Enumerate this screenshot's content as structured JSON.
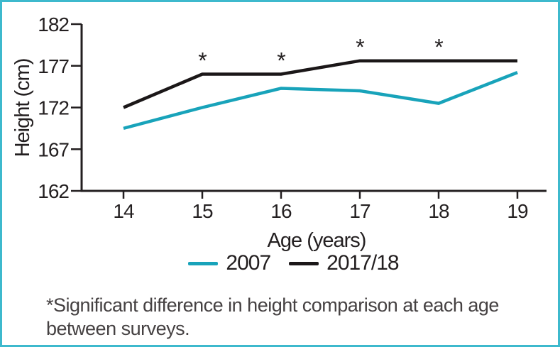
{
  "figure": {
    "border_color": "#3db9cd",
    "background_color": "#ffffff",
    "axis_color": "#231f20",
    "text_color": "#231f20"
  },
  "chart_data": {
    "type": "line",
    "title": "",
    "xlabel": "Age (years)",
    "ylabel": "Height (cm)",
    "x": [
      14,
      15,
      16,
      17,
      18,
      19
    ],
    "ylim": [
      162,
      182
    ],
    "yticks": [
      162,
      167,
      172,
      177,
      182
    ],
    "grid": false,
    "legend_position": "bottom",
    "series": [
      {
        "name": "2007",
        "color": "#18a3ba",
        "values": [
          169.5,
          172.0,
          174.3,
          174.0,
          172.5,
          176.2
        ]
      },
      {
        "name": "2017/18",
        "color": "#1b1718",
        "values": [
          172.0,
          176.0,
          176.0,
          177.6,
          177.6,
          177.6
        ]
      }
    ],
    "annotations": {
      "marker": "*",
      "marked_ages": [
        15,
        16,
        17,
        18
      ],
      "marked_series": "2017/18",
      "meaning": "*Significant difference in height comparison at each age between surveys."
    }
  },
  "footnote": {
    "text": "*Significant difference in height comparison at each age between surveys."
  }
}
